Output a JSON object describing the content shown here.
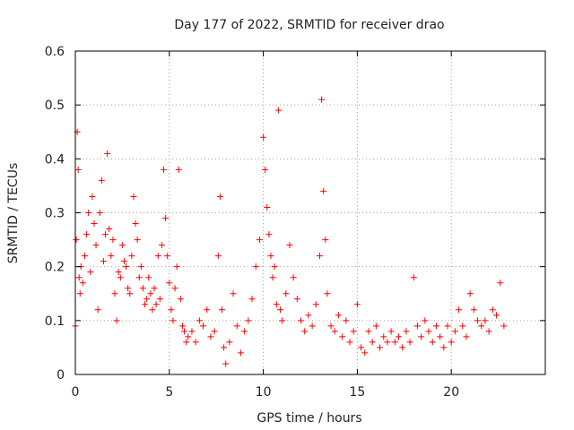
{
  "chart_data": {
    "type": "scatter",
    "title": "Day 177 of 2022, SRMTID for receiver drao",
    "xlabel": "GPS time / hours",
    "ylabel": "SRMTID / TECUs",
    "xlim": [
      0,
      25
    ],
    "ylim": [
      0,
      0.6
    ],
    "xticks": [
      0,
      5,
      10,
      15,
      20
    ],
    "yticks": [
      0,
      0.1,
      0.2,
      0.3,
      0.4,
      0.5,
      0.6
    ],
    "xtick_labels": [
      "0",
      "5",
      "10",
      "15",
      "20"
    ],
    "ytick_labels": [
      "0",
      "0.1",
      "0.2",
      "0.3",
      "0.4",
      "0.5",
      "0.6"
    ],
    "grid": true,
    "marker": "+",
    "color": "#ff0000",
    "series": [
      {
        "name": "SRMTID",
        "x": [
          0.0,
          0.05,
          0.1,
          0.15,
          0.2,
          0.25,
          0.3,
          0.4,
          0.5,
          0.6,
          0.7,
          0.8,
          0.9,
          1.0,
          1.1,
          1.2,
          1.3,
          1.4,
          1.5,
          1.6,
          1.7,
          1.8,
          1.9,
          2.0,
          2.1,
          2.2,
          2.3,
          2.4,
          2.5,
          2.6,
          2.7,
          2.8,
          2.9,
          3.0,
          3.1,
          3.2,
          3.3,
          3.4,
          3.5,
          3.6,
          3.7,
          3.8,
          3.9,
          4.0,
          4.1,
          4.2,
          4.3,
          4.4,
          4.5,
          4.6,
          4.7,
          4.8,
          4.9,
          5.0,
          5.1,
          5.2,
          5.3,
          5.4,
          5.5,
          5.6,
          5.7,
          5.8,
          5.9,
          6.0,
          6.2,
          6.4,
          6.6,
          6.8,
          7.0,
          7.2,
          7.4,
          7.6,
          7.7,
          7.8,
          7.9,
          8.0,
          8.2,
          8.4,
          8.6,
          8.8,
          9.0,
          9.2,
          9.4,
          9.6,
          9.8,
          10.0,
          10.1,
          10.2,
          10.3,
          10.4,
          10.5,
          10.6,
          10.7,
          10.8,
          10.9,
          11.0,
          11.2,
          11.4,
          11.6,
          11.8,
          12.0,
          12.2,
          12.4,
          12.6,
          12.8,
          13.0,
          13.1,
          13.2,
          13.3,
          13.4,
          13.6,
          13.8,
          14.0,
          14.2,
          14.4,
          14.6,
          14.8,
          15.0,
          15.2,
          15.4,
          15.6,
          15.8,
          16.0,
          16.2,
          16.4,
          16.6,
          16.8,
          17.0,
          17.2,
          17.4,
          17.6,
          17.8,
          18.0,
          18.2,
          18.4,
          18.6,
          18.8,
          19.0,
          19.2,
          19.4,
          19.6,
          19.8,
          20.0,
          20.2,
          20.4,
          20.6,
          20.8,
          21.0,
          21.2,
          21.4,
          21.6,
          21.8,
          22.0,
          22.2,
          22.4,
          22.6,
          22.8
        ],
        "y": [
          0.09,
          0.25,
          0.45,
          0.38,
          0.18,
          0.15,
          0.2,
          0.17,
          0.22,
          0.26,
          0.3,
          0.19,
          0.33,
          0.28,
          0.24,
          0.12,
          0.3,
          0.36,
          0.21,
          0.26,
          0.41,
          0.27,
          0.22,
          0.25,
          0.15,
          0.1,
          0.19,
          0.18,
          0.24,
          0.21,
          0.2,
          0.16,
          0.15,
          0.22,
          0.33,
          0.28,
          0.25,
          0.18,
          0.2,
          0.16,
          0.13,
          0.14,
          0.18,
          0.15,
          0.12,
          0.16,
          0.13,
          0.22,
          0.14,
          0.24,
          0.38,
          0.29,
          0.22,
          0.17,
          0.12,
          0.1,
          0.16,
          0.2,
          0.38,
          0.14,
          0.09,
          0.08,
          0.06,
          0.07,
          0.08,
          0.06,
          0.1,
          0.09,
          0.12,
          0.07,
          0.08,
          0.22,
          0.33,
          0.12,
          0.05,
          0.02,
          0.06,
          0.15,
          0.09,
          0.04,
          0.08,
          0.1,
          0.14,
          0.2,
          0.25,
          0.44,
          0.38,
          0.31,
          0.26,
          0.22,
          0.18,
          0.2,
          0.13,
          0.49,
          0.12,
          0.1,
          0.15,
          0.24,
          0.18,
          0.14,
          0.1,
          0.08,
          0.11,
          0.09,
          0.13,
          0.22,
          0.51,
          0.34,
          0.25,
          0.15,
          0.09,
          0.08,
          0.11,
          0.07,
          0.1,
          0.06,
          0.08,
          0.13,
          0.05,
          0.04,
          0.08,
          0.06,
          0.09,
          0.05,
          0.07,
          0.06,
          0.08,
          0.06,
          0.07,
          0.05,
          0.08,
          0.06,
          0.18,
          0.09,
          0.07,
          0.1,
          0.08,
          0.06,
          0.09,
          0.07,
          0.05,
          0.09,
          0.06,
          0.08,
          0.12,
          0.09,
          0.07,
          0.15,
          0.12,
          0.1,
          0.09,
          0.1,
          0.08,
          0.12,
          0.11,
          0.17,
          0.09
        ]
      }
    ]
  }
}
